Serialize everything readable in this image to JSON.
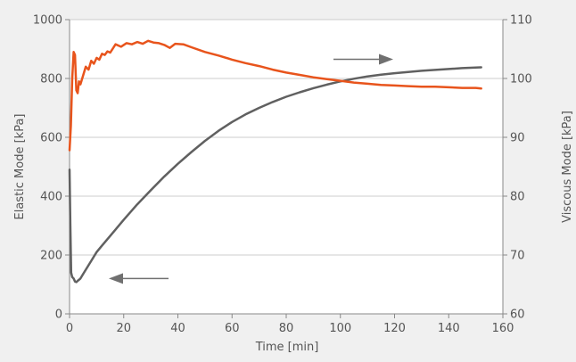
{
  "chart_data": {
    "type": "line",
    "title": "",
    "xlabel": "Time [min]",
    "ylabel_left": "Elastic Mode [kPa]",
    "ylabel_right": "Viscous Mode [kPa]",
    "xlim": [
      0,
      160
    ],
    "ylim_left": [
      0,
      1000
    ],
    "ylim_right": [
      60,
      110
    ],
    "x_ticks": [
      "0",
      "20",
      "40",
      "60",
      "80",
      "100",
      "120",
      "140",
      "160"
    ],
    "y_left_ticks": [
      "0",
      "200",
      "400",
      "600",
      "800",
      "1000"
    ],
    "y_right_ticks": [
      "60",
      "70",
      "80",
      "90",
      "100",
      "110"
    ],
    "grid": true,
    "colors": {
      "elastic": "#606060",
      "viscous": "#e8541c",
      "grid": "#cccccc",
      "axis": "#888888",
      "arrow": "#707070"
    },
    "series": [
      {
        "axis": "left",
        "color": "#606060",
        "x": [
          0,
          0.3,
          0.6,
          1,
          1.5,
          2,
          2.5,
          3,
          4,
          5,
          6,
          8,
          10,
          12,
          15,
          20,
          25,
          30,
          35,
          40,
          45,
          50,
          55,
          60,
          65,
          70,
          75,
          80,
          85,
          90,
          95,
          100,
          105,
          110,
          115,
          120,
          125,
          130,
          135,
          140,
          145,
          150,
          152
        ],
        "values": [
          490,
          300,
          140,
          125,
          120,
          110,
          108,
          112,
          120,
          135,
          150,
          180,
          210,
          232,
          265,
          320,
          372,
          420,
          467,
          510,
          550,
          588,
          622,
          652,
          678,
          700,
          720,
          738,
          753,
          767,
          779,
          790,
          799,
          807,
          813,
          818,
          822,
          826,
          829,
          832,
          835,
          837,
          838
        ]
      },
      {
        "axis": "right",
        "color": "#e8541c",
        "x": [
          0,
          0.5,
          1,
          1.5,
          2,
          2.5,
          3,
          3.5,
          4,
          5,
          6,
          7,
          8,
          9,
          10,
          11,
          12,
          13,
          14,
          15,
          17,
          19,
          21,
          23,
          25,
          27,
          29,
          31,
          33,
          35,
          37,
          39,
          42,
          45,
          50,
          55,
          60,
          65,
          70,
          75,
          80,
          85,
          90,
          95,
          100,
          105,
          110,
          115,
          120,
          125,
          130,
          135,
          140,
          145,
          150,
          152
        ],
        "values": [
          87.8,
          92,
          100,
          104.5,
          104,
          98,
          97.5,
          99.5,
          99,
          100.5,
          102,
          101.5,
          103,
          102.5,
          103.5,
          103.2,
          104.2,
          104.0,
          104.6,
          104.4,
          105.8,
          105.4,
          106.0,
          105.8,
          106.2,
          105.9,
          106.4,
          106.1,
          106.0,
          105.7,
          105.2,
          105.9,
          105.8,
          105.3,
          104.5,
          103.9,
          103.2,
          102.6,
          102.1,
          101.5,
          101.0,
          100.6,
          100.2,
          99.9,
          99.6,
          99.3,
          99.1,
          98.9,
          98.8,
          98.7,
          98.6,
          98.6,
          98.5,
          98.4,
          98.4,
          98.3
        ]
      }
    ]
  }
}
